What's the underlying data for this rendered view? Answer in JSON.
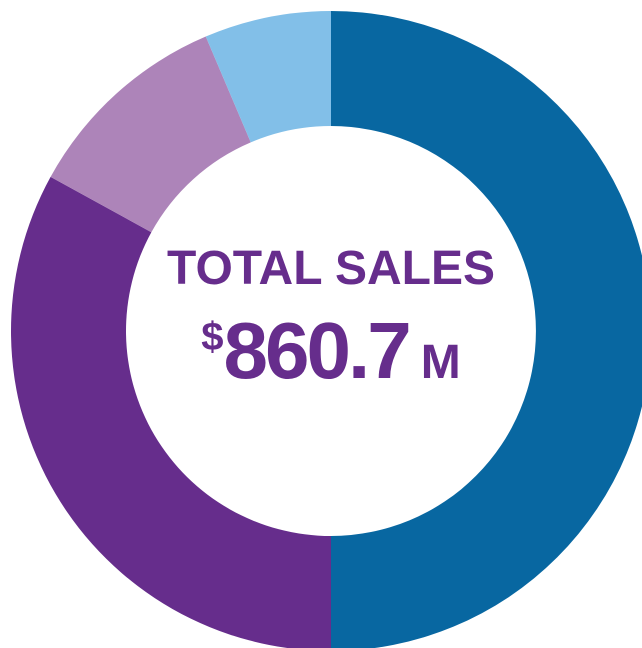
{
  "chart_data": {
    "type": "donut",
    "center_title": "TOTAL SALES",
    "total_parts": [
      "$",
      "860.7",
      "M"
    ],
    "values": [
      50,
      33,
      10.6,
      6.4
    ],
    "colors": [
      "#0867a1",
      "#662d8c",
      "#ad84b9",
      "#82bfe8"
    ]
  }
}
